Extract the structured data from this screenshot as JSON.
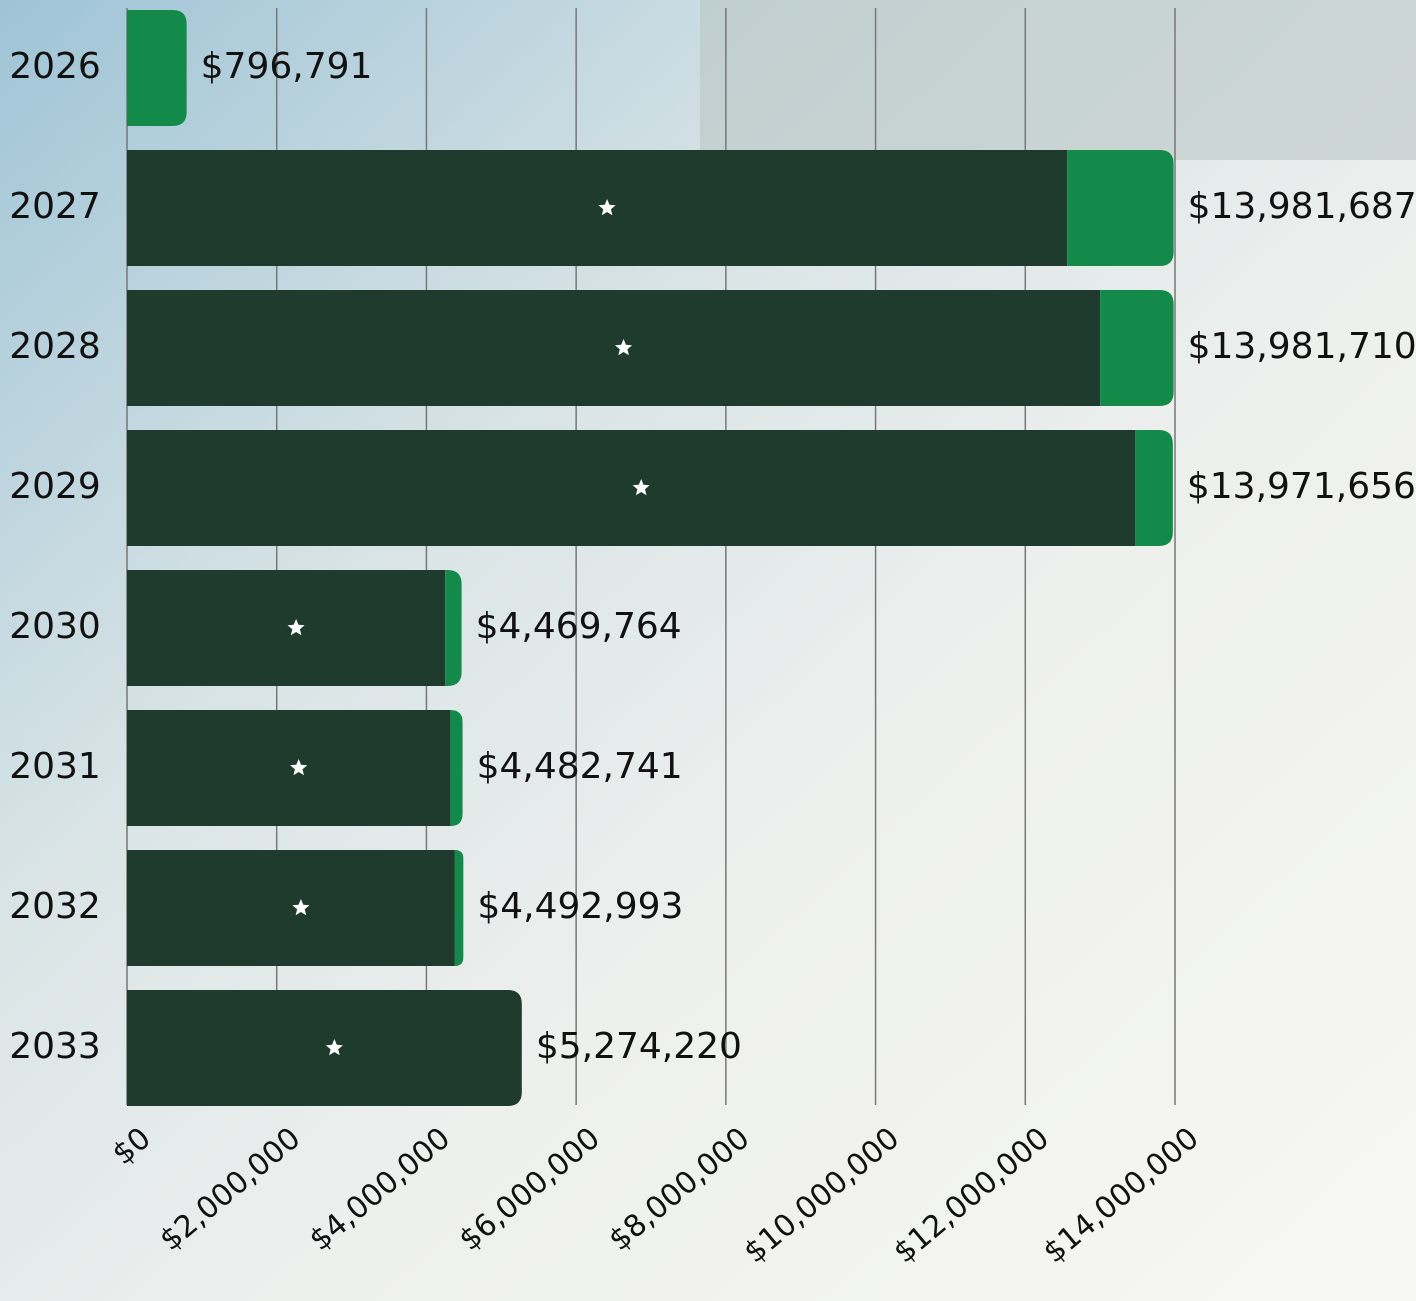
{
  "chart_data": {
    "type": "stacked-barh",
    "categories": [
      "2026",
      "2027",
      "2028",
      "2029",
      "2030",
      "2031",
      "2032",
      "2033"
    ],
    "series": [
      {
        "color": "#1f3b2d",
        "values": [
          0,
          12560000,
          13000000,
          13470000,
          4250000,
          4320000,
          4380000,
          5274220
        ]
      },
      {
        "color": "#138a4a",
        "values": [
          796791,
          1421687,
          981710,
          501656,
          219764,
          162741,
          112993,
          0
        ]
      }
    ],
    "totals": [
      796791,
      13981687,
      13981710,
      13971656,
      4469764,
      4482741,
      4492993,
      5274220
    ],
    "total_labels": [
      "$796,791",
      "$13,981,687",
      "$13,981,710",
      "$13,971,656",
      "$4,469,764",
      "$4,482,741",
      "$4,492,993",
      "$5,274,220"
    ],
    "xlim": [
      0,
      14000000
    ],
    "xticks": [
      {
        "value": 0,
        "label": "$0"
      },
      {
        "value": 2000000,
        "label": "$2,000,000"
      },
      {
        "value": 4000000,
        "label": "$4,000,000"
      },
      {
        "value": 6000000,
        "label": "$6,000,000"
      },
      {
        "value": 8000000,
        "label": "$8,000,000"
      },
      {
        "value": 10000000,
        "label": "$10,000,000"
      },
      {
        "value": 12000000,
        "label": "$12,000,000"
      },
      {
        "value": 14000000,
        "label": "$14,000,000"
      }
    ],
    "grid": true
  }
}
